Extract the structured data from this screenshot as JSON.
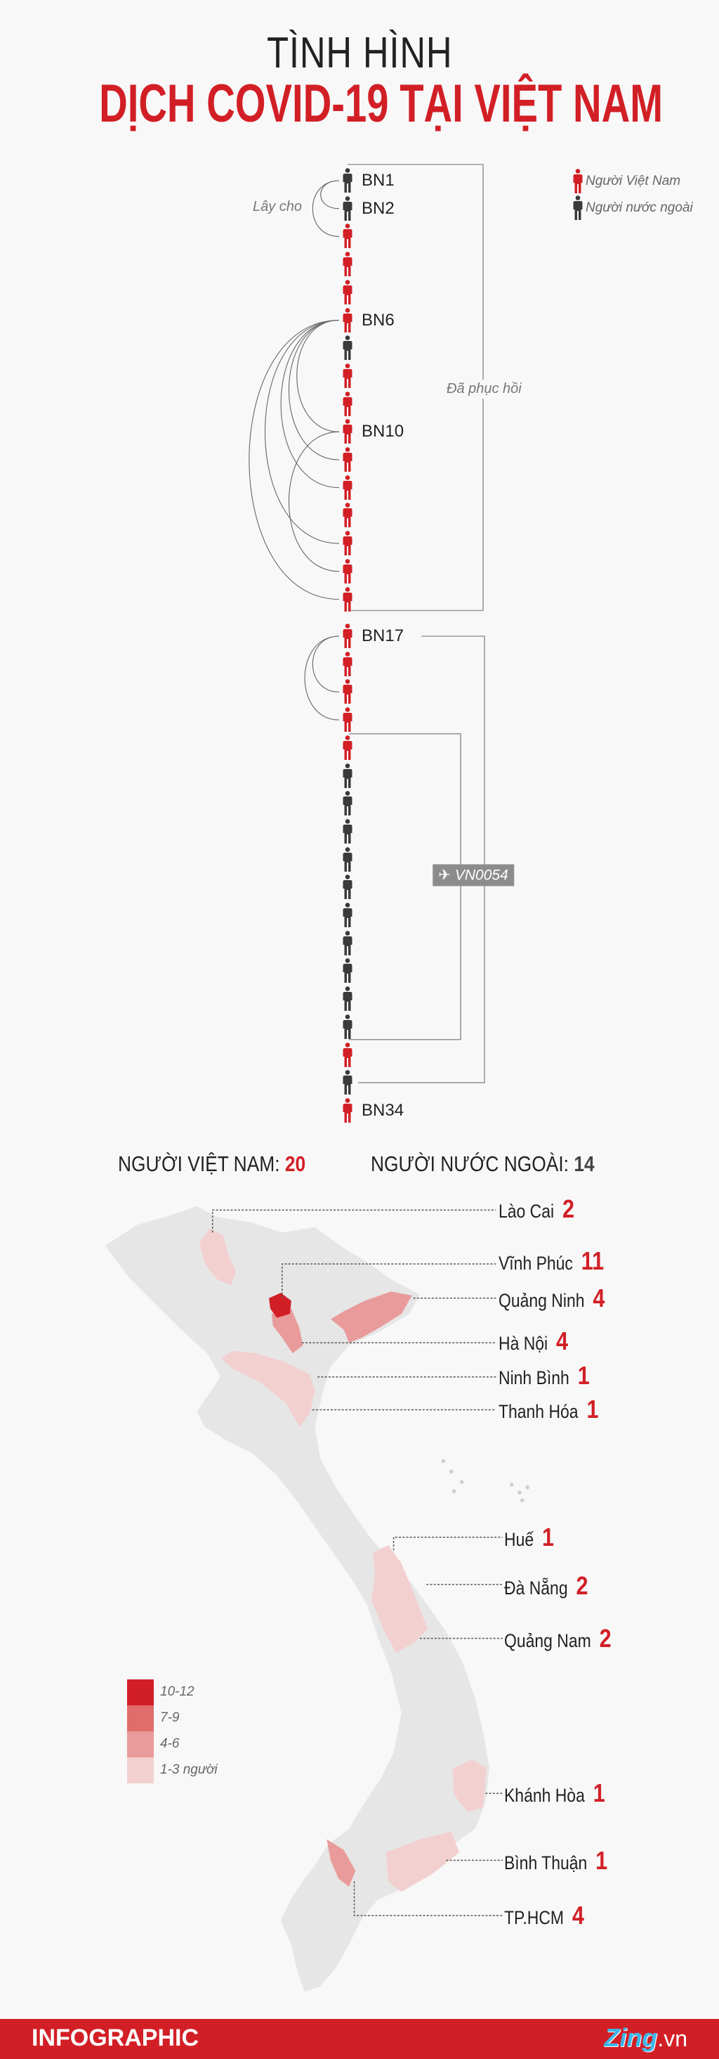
{
  "title": {
    "line1": "TÌNH HÌNH",
    "line2": "DỊCH COVID-19 TẠI VIỆT NAM"
  },
  "colors": {
    "vietnamese": "#d21f26",
    "foreign": "#3a3a3a",
    "map_base": "#e6e6e6",
    "accent": "#d21f26"
  },
  "legend": {
    "vietnamese": {
      "label": "Người Việt Nam",
      "icon": "person-icon"
    },
    "foreign": {
      "label": "Người nước ngoài",
      "icon": "person-icon"
    }
  },
  "chain": {
    "transmit_label": "Lây cho",
    "recovered_label": "Đã phục hồi",
    "recovered_range": [
      1,
      16
    ],
    "second_group_range": [
      17,
      33
    ],
    "flight": {
      "label": "VN0054",
      "icon": "airplane-icon",
      "range": [
        21,
        31
      ]
    },
    "patients": [
      {
        "type": "foreign",
        "label": "BN1"
      },
      {
        "type": "foreign",
        "label": "BN2"
      },
      {
        "type": "vn"
      },
      {
        "type": "vn"
      },
      {
        "type": "vn"
      },
      {
        "type": "vn",
        "label": "BN6"
      },
      {
        "type": "foreign"
      },
      {
        "type": "vn"
      },
      {
        "type": "vn"
      },
      {
        "type": "vn",
        "label": "BN10"
      },
      {
        "type": "vn"
      },
      {
        "type": "vn"
      },
      {
        "type": "vn"
      },
      {
        "type": "vn"
      },
      {
        "type": "vn"
      },
      {
        "type": "vn"
      },
      {
        "type": "vn",
        "label": "BN17"
      },
      {
        "type": "vn"
      },
      {
        "type": "vn"
      },
      {
        "type": "vn"
      },
      {
        "type": "vn"
      },
      {
        "type": "foreign"
      },
      {
        "type": "foreign"
      },
      {
        "type": "foreign"
      },
      {
        "type": "foreign"
      },
      {
        "type": "foreign"
      },
      {
        "type": "foreign"
      },
      {
        "type": "foreign"
      },
      {
        "type": "foreign"
      },
      {
        "type": "foreign"
      },
      {
        "type": "foreign"
      },
      {
        "type": "vn"
      },
      {
        "type": "foreign"
      },
      {
        "type": "vn",
        "label": "BN34"
      }
    ],
    "transmissions": [
      [
        1,
        2
      ],
      [
        1,
        3
      ],
      [
        6,
        10
      ],
      [
        6,
        11
      ],
      [
        6,
        12
      ],
      [
        6,
        14
      ],
      [
        6,
        16
      ],
      [
        10,
        15
      ],
      [
        17,
        19
      ],
      [
        17,
        20
      ]
    ]
  },
  "summary": {
    "vietnamese_label": "NGƯỜI VIỆT NAM:",
    "vietnamese_count": "20",
    "foreign_label": "NGƯỜI NƯỚC NGOÀI:",
    "foreign_count": "14"
  },
  "provinces": [
    {
      "name": "Lào Cai",
      "count": "2"
    },
    {
      "name": "Vĩnh Phúc",
      "count": "11"
    },
    {
      "name": "Quảng Ninh",
      "count": "4"
    },
    {
      "name": "Hà Nội",
      "count": "4"
    },
    {
      "name": "Ninh Bình",
      "count": "1"
    },
    {
      "name": "Thanh Hóa",
      "count": "1"
    },
    {
      "name": "Huế",
      "count": "1"
    },
    {
      "name": "Đà Nẵng",
      "count": "2"
    },
    {
      "name": "Quảng Nam",
      "count": "2"
    },
    {
      "name": "Khánh Hòa",
      "count": "1"
    },
    {
      "name": "Bình Thuận",
      "count": "1"
    },
    {
      "name": "TP.HCM",
      "count": "4"
    }
  ],
  "map_legend": [
    {
      "label": "10-12",
      "color": "#d21f26"
    },
    {
      "label": "7-9",
      "color": "#e06c6c"
    },
    {
      "label": "4-6",
      "color": "#e99b9b"
    },
    {
      "label": "1-3 người",
      "color": "#f3d0d0"
    }
  ],
  "footer": {
    "left": "INFOGRAPHIC",
    "logo_main": "Zing",
    "logo_suffix": ".vn"
  }
}
